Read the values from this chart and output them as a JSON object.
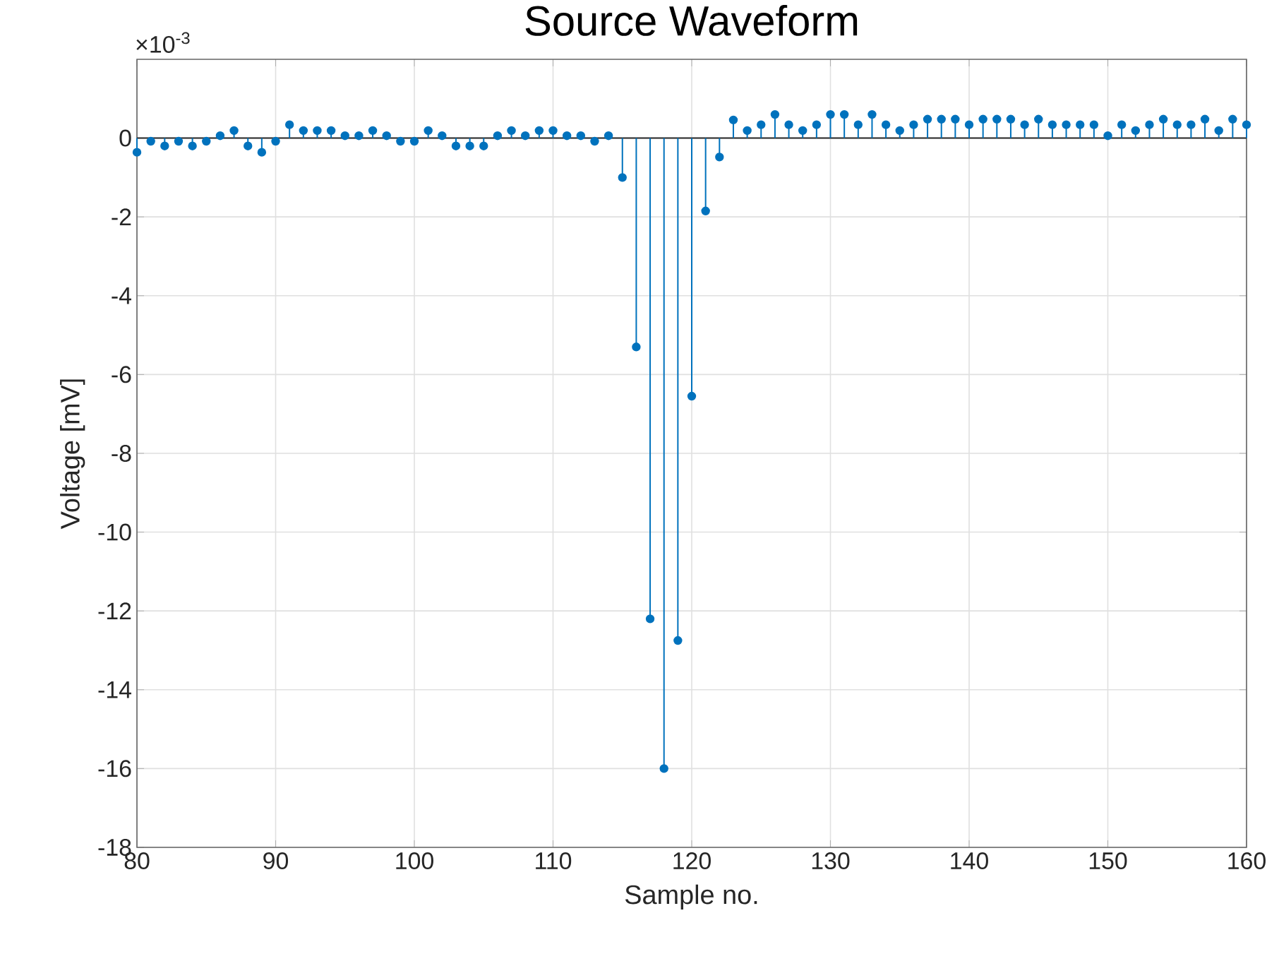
{
  "chart_data": {
    "type": "lollipop",
    "title": "Source Waveform",
    "xlabel": "Sample no.",
    "ylabel": "Voltage [mV]",
    "annotations": [
      "×10$^{-3}$"
    ],
    "x": [
      80,
      81,
      82,
      83,
      84,
      85,
      86,
      87,
      88,
      89,
      90,
      91,
      92,
      93,
      94,
      95,
      96,
      97,
      98,
      99,
      100,
      101,
      102,
      103,
      104,
      105,
      106,
      107,
      108,
      109,
      110,
      111,
      112,
      113,
      114,
      115,
      116,
      117,
      118,
      119,
      120,
      121,
      122,
      123,
      124,
      125,
      126,
      127,
      128,
      129,
      130,
      131,
      132,
      133,
      134,
      135,
      136,
      137,
      138,
      139,
      140,
      141,
      142,
      143,
      144,
      145,
      146,
      147,
      148,
      149,
      150,
      151,
      152,
      153,
      154,
      155,
      156,
      157,
      158,
      159,
      160
    ],
    "series": [
      {
        "color": "#0072bd",
        "values": [
          -0.36,
          -0.08,
          -0.2,
          -0.08,
          -0.2,
          -0.08,
          0.06,
          0.19,
          -0.2,
          -0.36,
          -0.08,
          0.34,
          0.19,
          0.19,
          0.19,
          0.06,
          0.06,
          0.19,
          0.06,
          -0.08,
          -0.08,
          0.19,
          0.06,
          -0.2,
          -0.2,
          -0.2,
          0.06,
          0.19,
          0.06,
          0.19,
          0.19,
          0.06,
          0.06,
          -0.08,
          0.06,
          -1.0,
          -5.3,
          -12.2,
          -16.0,
          -12.75,
          -6.55,
          -1.85,
          -0.48,
          0.46,
          0.19,
          0.34,
          0.6,
          0.34,
          0.19,
          0.34,
          0.6,
          0.6,
          0.34,
          0.6,
          0.34,
          0.19,
          0.34,
          0.48,
          0.48,
          0.48,
          0.34,
          0.48,
          0.48,
          0.48,
          0.34,
          0.48,
          0.34,
          0.34,
          0.34,
          0.34,
          0.06,
          0.34,
          0.19,
          0.34,
          0.48,
          0.34,
          0.34,
          0.48,
          0.19,
          0.48,
          0.34
        ]
      }
    ],
    "xlim": [
      80,
      160
    ],
    "xticks": [
      80,
      90,
      100,
      110,
      120,
      130,
      140,
      150,
      160
    ],
    "ylim": [
      -18,
      2
    ],
    "yticks": [
      -18,
      -16,
      -14,
      -12,
      -10,
      -8,
      -6,
      -4,
      -2,
      0
    ],
    "ref_lines": [
      {
        "axis": "y",
        "value": 0,
        "color": "#262626"
      }
    ],
    "grid": true,
    "marker": "circle"
  }
}
